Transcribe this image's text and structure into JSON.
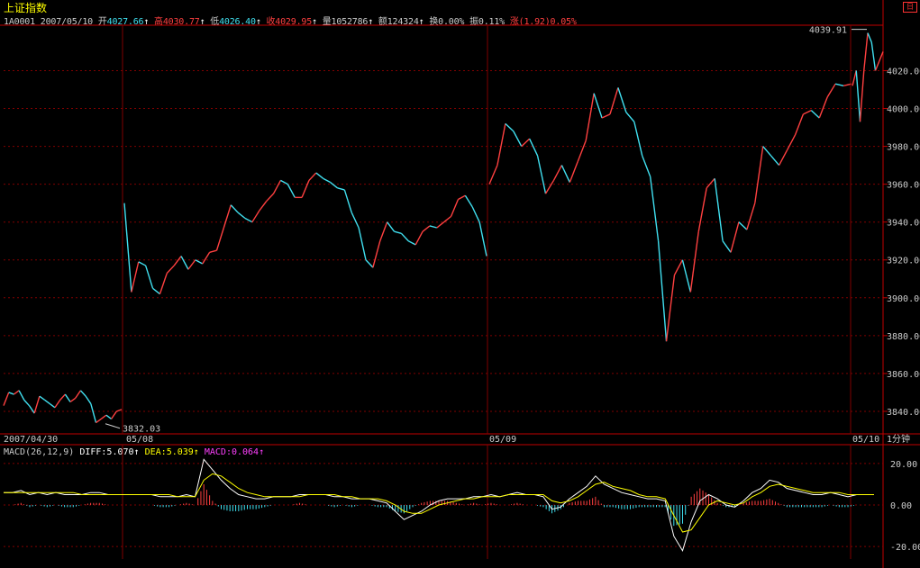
{
  "header": {
    "title": "上证指数",
    "code": "1A0001",
    "date": "2007/05/10",
    "open_label": "开",
    "open": "4027.66",
    "high_label": "高",
    "high": "4030.77",
    "low_label": "低",
    "low": "4026.40",
    "close_label": "收",
    "close": "4029.95",
    "volume_label": "量",
    "volume": "1052786",
    "amount_label": "额",
    "amount": "124324",
    "turnover_label": "换",
    "turnover": "0.00%",
    "amplitude_label": "振",
    "amplitude": "0.11%",
    "change_label": "涨",
    "change": "(1.92)0.05%",
    "arrow": "↑"
  },
  "corner_button": "日",
  "macd": {
    "label": "MACD(26,12,9)",
    "diff_label": "DIFF:",
    "diff": "5.070",
    "dea_label": "DEA:",
    "dea": "5.039",
    "macd_label": "MACD:",
    "macd": "0.064",
    "arrow": "↑"
  },
  "colors": {
    "up": "#ff4040",
    "down": "#40e0f0",
    "grid": "#800000",
    "axis": "#c00000",
    "diff": "#ffffff",
    "dea": "#ffff00",
    "title": "#ffff00",
    "macd_label": "#ff40ff"
  },
  "chart_data": [
    {
      "type": "line",
      "y_ticks": [
        "4020.00",
        "4000.00",
        "3980.00",
        "3960.00",
        "3940.00",
        "3920.00",
        "3900.00",
        "3880.00",
        "3860.00",
        "3840.00"
      ],
      "ylim": [
        3830,
        4044
      ],
      "x_labels": [
        "2007/04/30",
        "05/08",
        "05/09",
        "05/10"
      ],
      "period": "1分钟",
      "max_label": "4039.91",
      "min_label": "3832.03",
      "grid": true,
      "segments": [
        {
          "day": "2007/04/30",
          "points": [
            3843,
            3850,
            3849,
            3851,
            3846,
            3843,
            3839,
            3848,
            3846,
            3844,
            3842,
            3846,
            3849,
            3845,
            3847,
            3851,
            3848,
            3844,
            3834,
            3836,
            3838,
            3836,
            3840,
            3841
          ]
        },
        {
          "day": "05/08",
          "points": [
            3950,
            3903,
            3919,
            3917,
            3905,
            3902,
            3913,
            3917,
            3922,
            3915,
            3920,
            3918,
            3924,
            3925,
            3937,
            3949,
            3945,
            3942,
            3940,
            3946,
            3951,
            3955,
            3962,
            3960,
            3953,
            3953,
            3962,
            3966,
            3963,
            3961,
            3958,
            3957,
            3945,
            3937,
            3920,
            3916,
            3930,
            3940,
            3935,
            3934,
            3930,
            3928,
            3935,
            3938,
            3937,
            3940,
            3943,
            3952,
            3954,
            3948,
            3940,
            3922
          ]
        },
        {
          "day": "05/09",
          "points": [
            3960,
            3970,
            3992,
            3988,
            3980,
            3984,
            3975,
            3955,
            3962,
            3970,
            3961,
            3972,
            3983,
            4008,
            3995,
            3997,
            4011,
            3998,
            3993,
            3975,
            3964,
            3930,
            3877,
            3912,
            3920,
            3903,
            3935,
            3958,
            3963,
            3930,
            3924,
            3940,
            3936,
            3950,
            3980,
            3975,
            3970,
            3978,
            3986,
            3997,
            3999,
            3995,
            4006,
            4013,
            4012,
            4013
          ]
        },
        {
          "day": "05/10",
          "points": [
            4012,
            4020,
            3993,
            4020,
            4039.91,
            4035,
            4020,
            4025,
            4030
          ]
        }
      ]
    },
    {
      "type": "line",
      "name": "MACD(26,12,9)",
      "y_ticks": [
        "20.00",
        "0.00",
        "-20.00"
      ],
      "ylim": [
        -26,
        23
      ],
      "series": [
        {
          "name": "DIFF",
          "values": [
            6,
            6,
            7,
            5,
            6,
            5,
            6,
            5,
            5,
            5,
            6,
            6,
            5,
            5,
            5,
            5,
            5,
            5,
            4,
            4,
            4,
            5,
            4,
            22,
            17,
            12,
            8,
            5,
            4,
            3,
            3,
            4,
            4,
            4,
            5,
            5,
            5,
            5,
            4,
            4,
            3,
            3,
            3,
            2,
            1,
            -3,
            -7,
            -5,
            -3,
            0,
            2,
            3,
            3,
            3,
            4,
            4,
            5,
            4,
            5,
            6,
            5,
            5,
            4,
            -2,
            -1,
            3,
            6,
            9,
            14,
            10,
            8,
            6,
            5,
            4,
            3,
            3,
            2,
            -15,
            -22,
            -8,
            2,
            5,
            3,
            0,
            -1,
            2,
            6,
            8,
            12,
            11,
            8,
            7,
            6,
            5,
            5,
            6,
            5,
            4,
            5,
            5,
            5
          ]
        },
        {
          "name": "DEA",
          "values": [
            6,
            6,
            6,
            6,
            6,
            6,
            6,
            6,
            6,
            5,
            5,
            5,
            5,
            5,
            5,
            5,
            5,
            5,
            5,
            5,
            4,
            4,
            4,
            12,
            15,
            14,
            11,
            8,
            6,
            5,
            4,
            4,
            4,
            4,
            4,
            5,
            5,
            5,
            5,
            4,
            4,
            3,
            3,
            3,
            2,
            0,
            -3,
            -4,
            -4,
            -2,
            0,
            1,
            2,
            3,
            3,
            4,
            4,
            4,
            5,
            5,
            5,
            5,
            5,
            2,
            1,
            2,
            4,
            7,
            10,
            11,
            9,
            8,
            7,
            5,
            4,
            4,
            3,
            -5,
            -13,
            -12,
            -6,
            0,
            2,
            1,
            0,
            1,
            4,
            6,
            9,
            10,
            9,
            8,
            7,
            6,
            6,
            6,
            6,
            5,
            5,
            5,
            5
          ]
        },
        {
          "name": "MACD",
          "values": [
            0,
            0,
            1,
            -1,
            0,
            -1,
            0,
            -1,
            -1,
            0,
            1,
            1,
            0,
            0,
            0,
            0,
            0,
            0,
            -1,
            -1,
            0,
            1,
            0,
            10,
            2,
            -2,
            -3,
            -3,
            -2,
            -2,
            -1,
            0,
            0,
            0,
            1,
            0,
            0,
            0,
            -1,
            0,
            -1,
            0,
            0,
            -1,
            -1,
            -3,
            -4,
            -1,
            1,
            2,
            2,
            2,
            1,
            0,
            1,
            0,
            1,
            0,
            0,
            1,
            0,
            0,
            -1,
            -4,
            -2,
            1,
            2,
            2,
            4,
            -1,
            -1,
            -2,
            -2,
            -1,
            -1,
            -1,
            -1,
            -10,
            -9,
            4,
            8,
            5,
            1,
            -1,
            -1,
            1,
            2,
            2,
            3,
            1,
            -1,
            -1,
            -1,
            -1,
            -1,
            0,
            -1,
            -1,
            0,
            0,
            0
          ]
        }
      ]
    }
  ]
}
